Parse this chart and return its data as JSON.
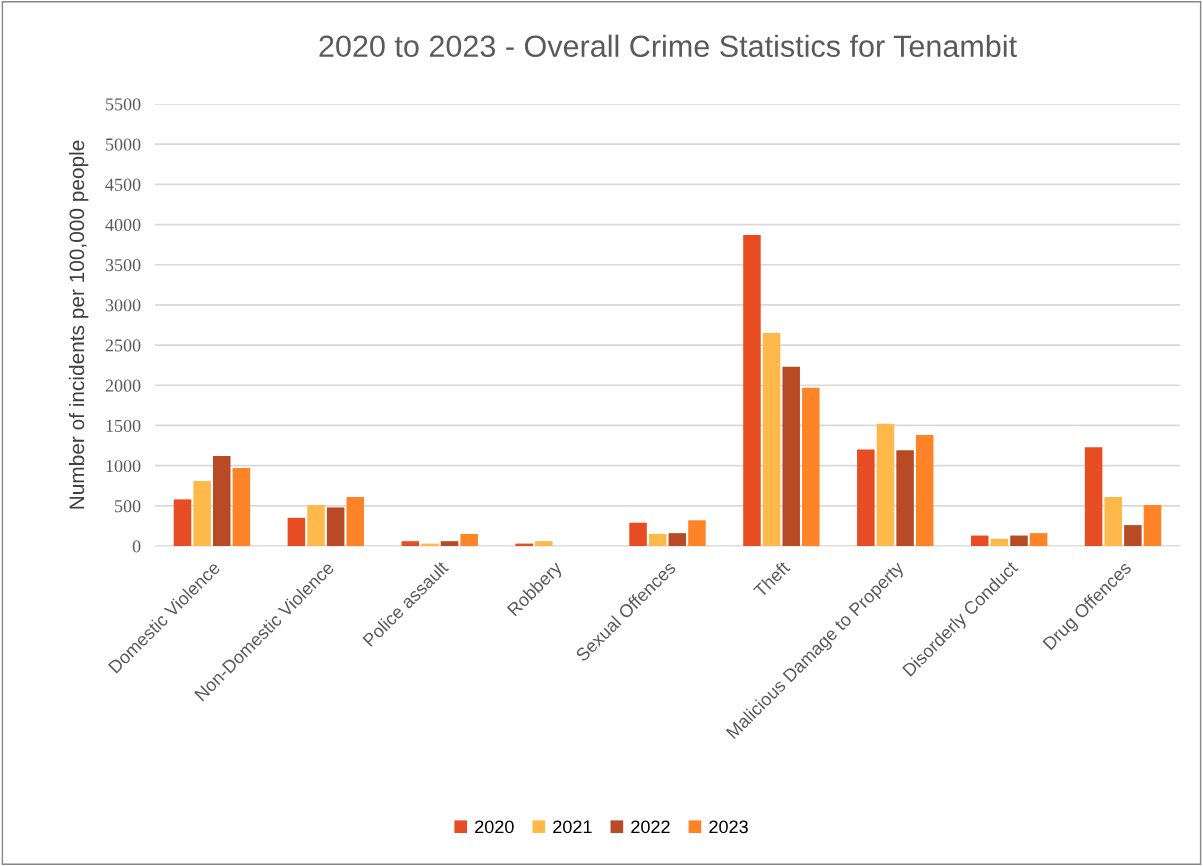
{
  "chart_data": {
    "type": "bar",
    "title": "2020 to 2023 - Overall Crime Statistics for Tenambit",
    "ylabel": "Number of incidents per 100,000 people",
    "categories": [
      "Domestic Violence",
      "Non-Domestic Violence",
      "Police assault",
      "Robbery",
      "Sexual Offences",
      "Theft",
      "Malicious Damage to Property",
      "Disorderly Conduct",
      "Drug Offences"
    ],
    "series": [
      {
        "name": "2020",
        "color": "#e84c22",
        "values": [
          580,
          350,
          60,
          30,
          290,
          3870,
          1200,
          130,
          1230
        ]
      },
      {
        "name": "2021",
        "color": "#ffb94a",
        "values": [
          810,
          510,
          30,
          60,
          150,
          2650,
          1520,
          90,
          610
        ]
      },
      {
        "name": "2022",
        "color": "#b84b26",
        "values": [
          1120,
          480,
          60,
          0,
          160,
          2230,
          1190,
          130,
          260
        ]
      },
      {
        "name": "2023",
        "color": "#fe8427",
        "values": [
          970,
          610,
          150,
          0,
          320,
          1970,
          1380,
          160,
          510
        ]
      }
    ],
    "ylim": [
      0,
      5500
    ],
    "yticks": [
      0,
      500,
      1000,
      1500,
      2000,
      2500,
      3000,
      3500,
      4000,
      4500,
      5000,
      5500
    ],
    "grid": "y",
    "legend": "bottom"
  }
}
